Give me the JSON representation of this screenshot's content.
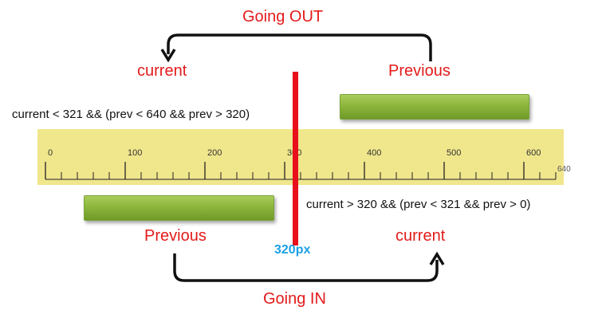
{
  "labels": {
    "going_out": "Going OUT",
    "going_in": "Going IN",
    "top_current": "current",
    "top_previous": "Previous",
    "bottom_previous": "Previous",
    "bottom_current": "current",
    "condition_out": "current < 321 && (prev < 640 && prev > 320)",
    "condition_in": "current > 320 && (prev <  321 && prev  > 0)",
    "marker": "320px"
  },
  "ruler": {
    "min": 0,
    "max": 640,
    "major_ticks": [
      0,
      100,
      200,
      300,
      400,
      500,
      600
    ],
    "end_label": "640",
    "minor_step": 20
  },
  "marker_value": 320,
  "colors": {
    "ruler_background": "#f0e68c",
    "marker_line": "#e8101b",
    "labels_red": "#e31b1b",
    "marker_label": "#1aa0e6",
    "bar_green": "#8cb63c"
  }
}
